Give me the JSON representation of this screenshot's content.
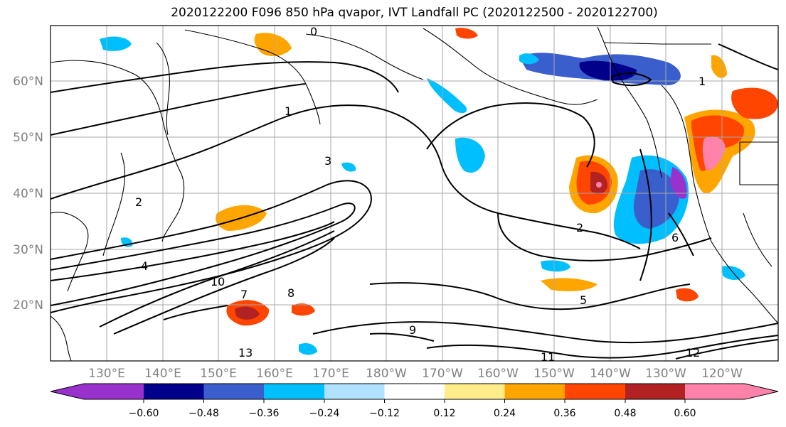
{
  "title": "2020122200 F096 850 hPa qvapor, IVT Landfall PC (2020122500 - 2020122700)",
  "map": {
    "lat_labels": [
      "60°N",
      "50°N",
      "40°N",
      "30°N",
      "20°N"
    ],
    "lon_labels": [
      "130°E",
      "140°E",
      "150°E",
      "160°E",
      "170°E",
      "180°W",
      "170°W",
      "160°W",
      "150°W",
      "140°W",
      "130°W",
      "120°W"
    ],
    "contour_labels": [
      "0",
      "1",
      "1",
      "2",
      "2",
      "3",
      "4",
      "5",
      "6",
      "7",
      "8",
      "9",
      "10",
      "11",
      "12",
      "13"
    ]
  },
  "colorbar": {
    "colors": [
      "#9932cc",
      "#00008b",
      "#3a5fcd",
      "#00bfff",
      "#b0e2ff",
      "#ffffff",
      "#ffec8b",
      "#ffa500",
      "#ff4500",
      "#b22222",
      "#ff82ab"
    ],
    "tick_labels": [
      "−0.60",
      "−0.48",
      "−0.36",
      "−0.24",
      "−0.12",
      "0.12",
      "0.24",
      "0.36",
      "0.48",
      "0.60"
    ]
  }
}
